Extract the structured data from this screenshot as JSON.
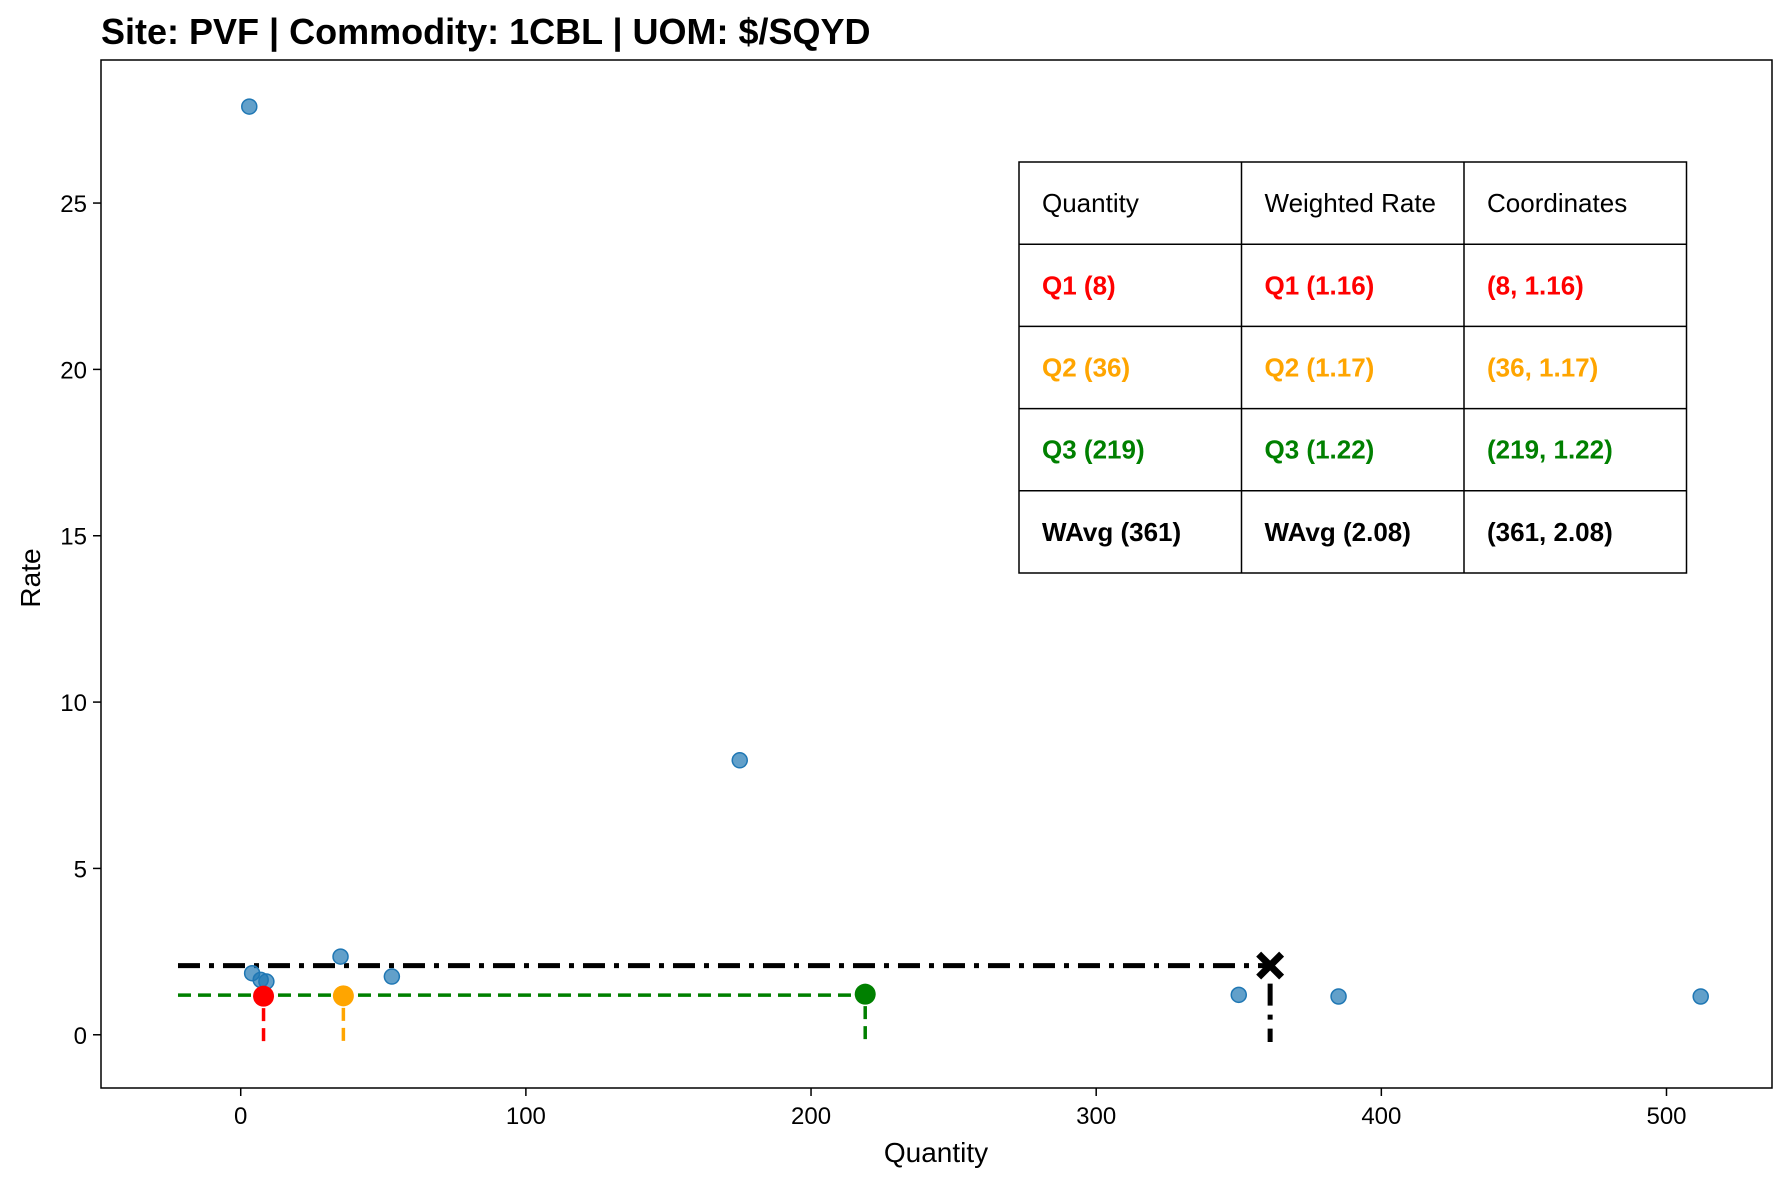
{
  "chart_data": {
    "type": "scatter",
    "title": "Site: PVF | Commodity: 1CBL | UOM: $/SQYD",
    "xlabel": "Quantity",
    "ylabel": "Rate",
    "xlim": [
      -49,
      537
    ],
    "ylim": [
      -1.6,
      29.3
    ],
    "xticks": [
      0,
      100,
      200,
      300,
      400,
      500
    ],
    "yticks": [
      0,
      5,
      10,
      15,
      20,
      25
    ],
    "grid": false,
    "series": [
      {
        "marker_color": "#1f77b4",
        "points": [
          {
            "x": 3,
            "y": 27.9
          },
          {
            "x": 4,
            "y": 1.85
          },
          {
            "x": 7,
            "y": 1.65
          },
          {
            "x": 9,
            "y": 1.6
          },
          {
            "x": 35,
            "y": 2.35
          },
          {
            "x": 53,
            "y": 1.75
          },
          {
            "x": 175,
            "y": 8.25
          },
          {
            "x": 350,
            "y": 1.2
          },
          {
            "x": 385,
            "y": 1.15
          },
          {
            "x": 512,
            "y": 1.15
          }
        ]
      }
    ],
    "markers": [
      {
        "id": "q1",
        "x": 8,
        "y": 1.16,
        "color": "#ff0000",
        "shape": "circle"
      },
      {
        "id": "q2",
        "x": 36,
        "y": 1.17,
        "color": "#ffa500",
        "shape": "circle"
      },
      {
        "id": "q3",
        "x": 219,
        "y": 1.22,
        "color": "#008000",
        "shape": "circle"
      },
      {
        "id": "wavg",
        "x": 361,
        "y": 2.08,
        "color": "#000000",
        "shape": "x"
      }
    ],
    "reference_lines": [
      {
        "id": "q-line",
        "y": 1.19,
        "x_from": -22,
        "x_to": 219,
        "color": "#008000",
        "style": "dashed"
      },
      {
        "id": "wavg-line",
        "y": 2.08,
        "x_from": -22,
        "x_to": 361,
        "color": "#000000",
        "style": "dashdot"
      }
    ],
    "table": {
      "headers": [
        "Quantity",
        "Weighted Rate",
        "Coordinates"
      ],
      "rows": [
        {
          "color": "#ff0000",
          "cells": [
            "Q1 (8)",
            "Q1 (1.16)",
            "(8, 1.16)"
          ]
        },
        {
          "color": "#ffa500",
          "cells": [
            "Q2 (36)",
            "Q2 (1.17)",
            "(36, 1.17)"
          ]
        },
        {
          "color": "#008000",
          "cells": [
            "Q3 (219)",
            "Q3 (1.22)",
            "(219, 1.22)"
          ]
        },
        {
          "color": "#000000",
          "cells": [
            "WAvg (361)",
            "WAvg (2.08)",
            "(361, 2.08)"
          ]
        }
      ]
    }
  }
}
